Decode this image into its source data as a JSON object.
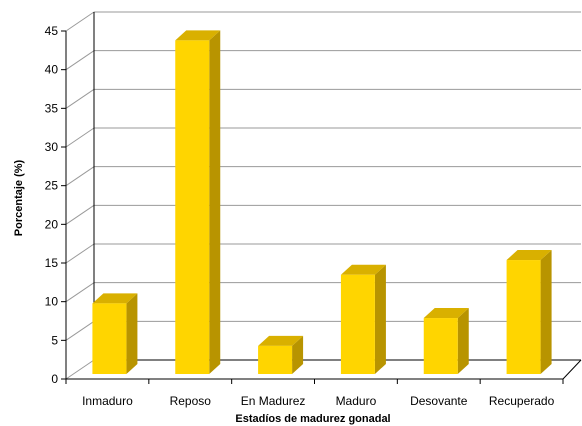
{
  "chart_data": {
    "type": "bar",
    "categories": [
      "Inmaduro",
      "Reposo",
      "En Madurez",
      "Maduro",
      "Desovante",
      "Recuperado"
    ],
    "values": [
      10.3,
      44.3,
      4.8,
      14.0,
      8.4,
      15.9
    ],
    "xlabel": "Estadíos de madurez gonadal",
    "ylabel": "Porcentaje (%)",
    "ylim": [
      0,
      45
    ],
    "yticks": [
      0,
      5,
      10,
      15,
      20,
      25,
      30,
      35,
      40,
      45
    ],
    "grid": true,
    "legend": "none",
    "colors": {
      "bar_front": "#FFD500",
      "bar_side": "#B89400",
      "bar_top": "#D9B000",
      "grid": "#9a9a9a"
    }
  }
}
